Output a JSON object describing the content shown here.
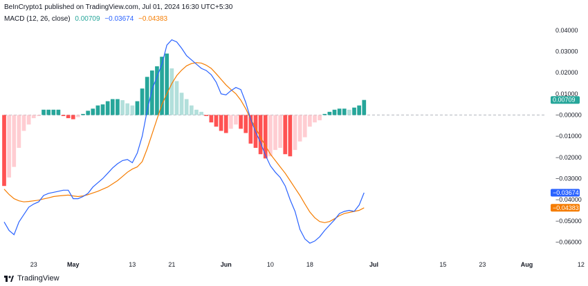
{
  "header": {
    "published": "BeInCrypto1 published on TradingView.com, Jul 01, 2024 16:30 UTC+5:30"
  },
  "legend": {
    "indicator": "MACD (12, 26, close)",
    "hist_value": "0.00709",
    "macd_value": "−0.03674",
    "signal_value": "−0.04383"
  },
  "footer": {
    "brand": "TradingView"
  },
  "colors": {
    "macd": "#2962ff",
    "signal": "#f57c00",
    "hist_pos_strong": "#26a69a",
    "hist_pos_weak": "#b2dfdb",
    "hist_neg_strong": "#ff5252",
    "hist_neg_weak": "#ffcdd2",
    "zero_line": "#b2b5be"
  },
  "chart_data": {
    "type": "line",
    "ylim": [
      -0.068,
      0.0445
    ],
    "y_ticks": [
      "0.04000",
      "0.03000",
      "0.02000",
      "0.01000",
      "−0.00000",
      "−0.01000",
      "−0.02000",
      "−0.03000",
      "−0.04000",
      "−0.05000",
      "−0.06000"
    ],
    "y_tick_values": [
      0.04,
      0.03,
      0.02,
      0.01,
      0.0,
      -0.01,
      -0.02,
      -0.03,
      -0.04,
      -0.05,
      -0.06
    ],
    "x_range_days": [
      0,
      110
    ],
    "x_ticks": [
      {
        "label": "23",
        "day": 6,
        "bold": false
      },
      {
        "label": "May",
        "day": 14,
        "bold": true
      },
      {
        "label": "13",
        "day": 26,
        "bold": false
      },
      {
        "label": "21",
        "day": 34,
        "bold": false
      },
      {
        "label": "Jun",
        "day": 45,
        "bold": true
      },
      {
        "label": "10",
        "day": 54,
        "bold": false
      },
      {
        "label": "18",
        "day": 62,
        "bold": false
      },
      {
        "label": "Jul",
        "day": 75,
        "bold": true
      },
      {
        "label": "15",
        "day": 89,
        "bold": false
      },
      {
        "label": "23",
        "day": 97,
        "bold": false
      },
      {
        "label": "Aug",
        "day": 106,
        "bold": true
      },
      {
        "label": "12",
        "day": 117,
        "bold": false
      }
    ],
    "series": [
      {
        "key": "macd",
        "values": [
          -0.0505,
          -0.0545,
          -0.0565,
          -0.0505,
          -0.047,
          -0.0435,
          -0.042,
          -0.041,
          -0.038,
          -0.037,
          -0.0365,
          -0.036,
          -0.0355,
          -0.0355,
          -0.0395,
          -0.0395,
          -0.0385,
          -0.037,
          -0.034,
          -0.032,
          -0.03,
          -0.0275,
          -0.025,
          -0.023,
          -0.0215,
          -0.021,
          -0.0225,
          -0.018,
          -0.01,
          0.002,
          0.012,
          0.018,
          0.024,
          0.033,
          0.0355,
          0.0345,
          0.0315,
          0.028,
          0.026,
          0.024,
          0.022,
          0.021,
          0.019,
          0.0155,
          0.01,
          0.0095,
          0.0115,
          0.013,
          0.012,
          0.006,
          -0.002,
          -0.008,
          -0.013,
          -0.019,
          -0.024,
          -0.027,
          -0.0295,
          -0.0335,
          -0.04,
          -0.0455,
          -0.054,
          -0.0585,
          -0.0605,
          -0.0595,
          -0.0575,
          -0.0545,
          -0.052,
          -0.0495,
          -0.0465,
          -0.0455,
          -0.045,
          -0.0455,
          -0.0425,
          -0.0367
        ]
      },
      {
        "key": "signal",
        "values": [
          -0.035,
          -0.0375,
          -0.0395,
          -0.0405,
          -0.041,
          -0.0408,
          -0.0405,
          -0.0402,
          -0.0396,
          -0.0391,
          -0.0385,
          -0.0382,
          -0.038,
          -0.0378,
          -0.0382,
          -0.0385,
          -0.0382,
          -0.0376,
          -0.0368,
          -0.036,
          -0.035,
          -0.034,
          -0.0325,
          -0.031,
          -0.029,
          -0.027,
          -0.0255,
          -0.0245,
          -0.022,
          -0.016,
          -0.009,
          -0.002,
          0.005,
          0.01,
          0.0148,
          0.0186,
          0.0212,
          0.0232,
          0.0243,
          0.0247,
          0.0245,
          0.0235,
          0.022,
          0.0195,
          0.0168,
          0.0142,
          0.012,
          0.01,
          0.007,
          0.003,
          -0.002,
          -0.006,
          -0.0105,
          -0.0145,
          -0.0185,
          -0.0215,
          -0.0245,
          -0.0275,
          -0.031,
          -0.0345,
          -0.038,
          -0.042,
          -0.0458,
          -0.0485,
          -0.0503,
          -0.0508,
          -0.0503,
          -0.049,
          -0.0475,
          -0.0465,
          -0.046,
          -0.0455,
          -0.045,
          -0.0438
        ]
      }
    ],
    "histogram": [
      -0.0335,
      -0.0295,
      -0.0245,
      -0.0155,
      -0.0075,
      -0.0045,
      -0.0015,
      -0.0005,
      0.0025,
      0.0025,
      0.0025,
      0.0025,
      -0.0005,
      -0.0015,
      -0.002,
      -0.001,
      0.0005,
      0.002,
      0.003,
      0.0045,
      0.005,
      0.0065,
      0.0075,
      0.0075,
      0.007,
      0.0055,
      0.0045,
      0.0065,
      0.0125,
      0.018,
      0.021,
      0.023,
      0.0275,
      0.029,
      0.022,
      0.016,
      0.0105,
      0.0075,
      0.0045,
      0.0025,
      0.0015,
      -0.0005,
      -0.0035,
      -0.0055,
      -0.0075,
      -0.0085,
      -0.0065,
      -0.0045,
      -0.0065,
      -0.0085,
      -0.0135,
      -0.0155,
      -0.0185,
      -0.0205,
      -0.0195,
      -0.0165,
      -0.0155,
      -0.0185,
      -0.0195,
      -0.0165,
      -0.0125,
      -0.0105,
      -0.0055,
      -0.0035,
      -0.0025,
      0.0005,
      0.0015,
      0.0025,
      0.003,
      0.003,
      0.0025,
      0.0035,
      0.0045,
      0.0071
    ]
  },
  "tags": {
    "hist": "0.00709",
    "macd": "−0.03674",
    "signal": "−0.04383"
  }
}
